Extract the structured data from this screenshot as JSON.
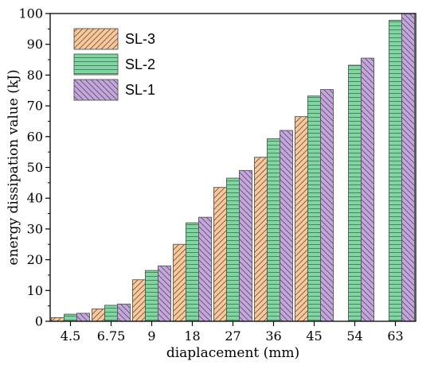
{
  "chart_data": {
    "type": "bar",
    "xlabel": "diaplacement (mm)",
    "ylabel": "energy dissipation value (kJ)",
    "ylim": [
      0,
      100
    ],
    "yticks": [
      0,
      10,
      20,
      30,
      40,
      50,
      60,
      70,
      80,
      90,
      100
    ],
    "categories": [
      "4.5",
      "6.75",
      "9",
      "18",
      "27",
      "36",
      "45",
      "54",
      "63"
    ],
    "legend_position": "top-left",
    "grid": false,
    "series": [
      {
        "name": "SL-3",
        "color": "#F9C89B",
        "pattern": "forward-diagonal-hatch",
        "values": [
          1.2,
          4.0,
          13.5,
          25.0,
          43.5,
          53.3,
          66.5,
          null,
          null
        ]
      },
      {
        "name": "SL-2",
        "color": "#7FD6A0",
        "pattern": "horizontal-lines",
        "values": [
          2.3,
          5.2,
          16.5,
          32.0,
          46.5,
          59.3,
          73.2,
          83.2,
          97.8
        ]
      },
      {
        "name": "SL-1",
        "color": "#C3A6DA",
        "pattern": "backward-diagonal-hatch",
        "values": [
          2.6,
          5.6,
          18.0,
          33.8,
          49.0,
          62.0,
          75.3,
          85.5,
          100.0
        ]
      }
    ]
  }
}
